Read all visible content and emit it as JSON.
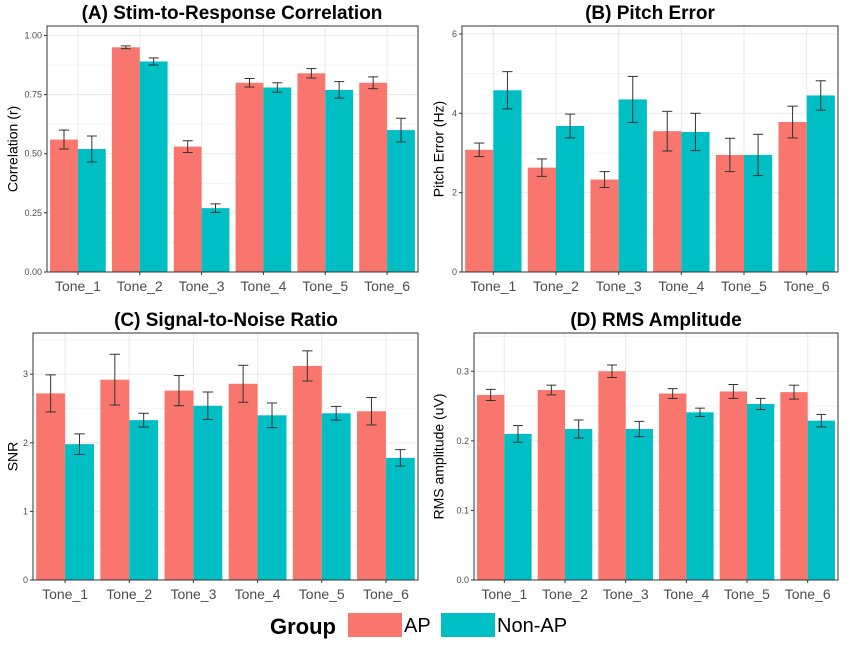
{
  "colors": {
    "AP": "#F8766D",
    "Non-AP": "#00BFC4",
    "grid": "#ebebeb",
    "panel_border": "#333333",
    "error_bar": "#333333"
  },
  "legend": {
    "title": "Group",
    "entries": [
      {
        "name": "AP",
        "color": "#F8766D"
      },
      {
        "name": "Non-AP",
        "color": "#00BFC4"
      }
    ]
  },
  "chart_data": [
    {
      "type": "bar",
      "title": "(A) Stim-to-Response Correlation",
      "ylabel": "Correlation (r)",
      "xlabel": "",
      "ylim": [
        0,
        1.04
      ],
      "yticks": [
        0,
        0.25,
        0.5,
        0.75,
        1.0
      ],
      "ytick_labels": [
        "0.00",
        "0.25",
        "0.50",
        "0.75",
        "1.00"
      ],
      "categories": [
        "Tone_1",
        "Tone_2",
        "Tone_3",
        "Tone_4",
        "Tone_5",
        "Tone_6"
      ],
      "series": [
        {
          "name": "AP",
          "values": [
            0.56,
            0.95,
            0.53,
            0.8,
            0.84,
            0.8
          ],
          "errors": [
            0.04,
            0.006,
            0.025,
            0.018,
            0.02,
            0.025
          ]
        },
        {
          "name": "Non-AP",
          "values": [
            0.52,
            0.89,
            0.27,
            0.78,
            0.77,
            0.6
          ],
          "errors": [
            0.055,
            0.015,
            0.018,
            0.02,
            0.035,
            0.05
          ]
        }
      ],
      "grid": true
    },
    {
      "type": "bar",
      "title": "(B) Pitch Error",
      "ylabel": "Pitch Error (Hz)",
      "xlabel": "",
      "ylim": [
        0,
        6.2
      ],
      "yticks": [
        0,
        2,
        4,
        6
      ],
      "ytick_labels": [
        "0",
        "2",
        "4",
        "6"
      ],
      "categories": [
        "Tone_1",
        "Tone_2",
        "Tone_3",
        "Tone_4",
        "Tone_5",
        "Tone_6"
      ],
      "series": [
        {
          "name": "AP",
          "values": [
            3.08,
            2.63,
            2.33,
            3.55,
            2.95,
            3.78
          ],
          "errors": [
            0.17,
            0.22,
            0.2,
            0.5,
            0.42,
            0.4
          ]
        },
        {
          "name": "Non-AP",
          "values": [
            4.58,
            3.68,
            4.35,
            3.53,
            2.95,
            4.45
          ],
          "errors": [
            0.47,
            0.3,
            0.58,
            0.47,
            0.52,
            0.37
          ]
        }
      ],
      "grid": true
    },
    {
      "type": "bar",
      "title": "(C) Signal-to-Noise Ratio",
      "ylabel": "SNR",
      "xlabel": "",
      "ylim": [
        0,
        3.6
      ],
      "yticks": [
        0,
        1,
        2,
        3
      ],
      "ytick_labels": [
        "0",
        "1",
        "2",
        "3"
      ],
      "categories": [
        "Tone_1",
        "Tone_2",
        "Tone_3",
        "Tone_4",
        "Tone_5",
        "Tone_6"
      ],
      "series": [
        {
          "name": "AP",
          "values": [
            2.72,
            2.92,
            2.76,
            2.86,
            3.12,
            2.46
          ],
          "errors": [
            0.27,
            0.37,
            0.22,
            0.27,
            0.22,
            0.2
          ]
        },
        {
          "name": "Non-AP",
          "values": [
            1.98,
            2.33,
            2.54,
            2.4,
            2.43,
            1.78
          ],
          "errors": [
            0.15,
            0.1,
            0.2,
            0.18,
            0.1,
            0.12
          ]
        }
      ],
      "grid": true
    },
    {
      "type": "bar",
      "title": "(D) RMS Amplitude",
      "ylabel": "RMS amplitude (uV)",
      "xlabel": "",
      "ylim": [
        0,
        0.355
      ],
      "yticks": [
        0,
        0.1,
        0.2,
        0.3
      ],
      "ytick_labels": [
        "0.0",
        "0.1",
        "0.2",
        "0.3"
      ],
      "categories": [
        "Tone_1",
        "Tone_2",
        "Tone_3",
        "Tone_4",
        "Tone_5",
        "Tone_6"
      ],
      "series": [
        {
          "name": "AP",
          "values": [
            0.266,
            0.273,
            0.3,
            0.268,
            0.271,
            0.27
          ],
          "errors": [
            0.008,
            0.007,
            0.009,
            0.007,
            0.01,
            0.01
          ]
        },
        {
          "name": "Non-AP",
          "values": [
            0.21,
            0.217,
            0.217,
            0.241,
            0.253,
            0.229
          ],
          "errors": [
            0.012,
            0.013,
            0.011,
            0.006,
            0.008,
            0.009
          ]
        }
      ],
      "grid": true
    }
  ]
}
